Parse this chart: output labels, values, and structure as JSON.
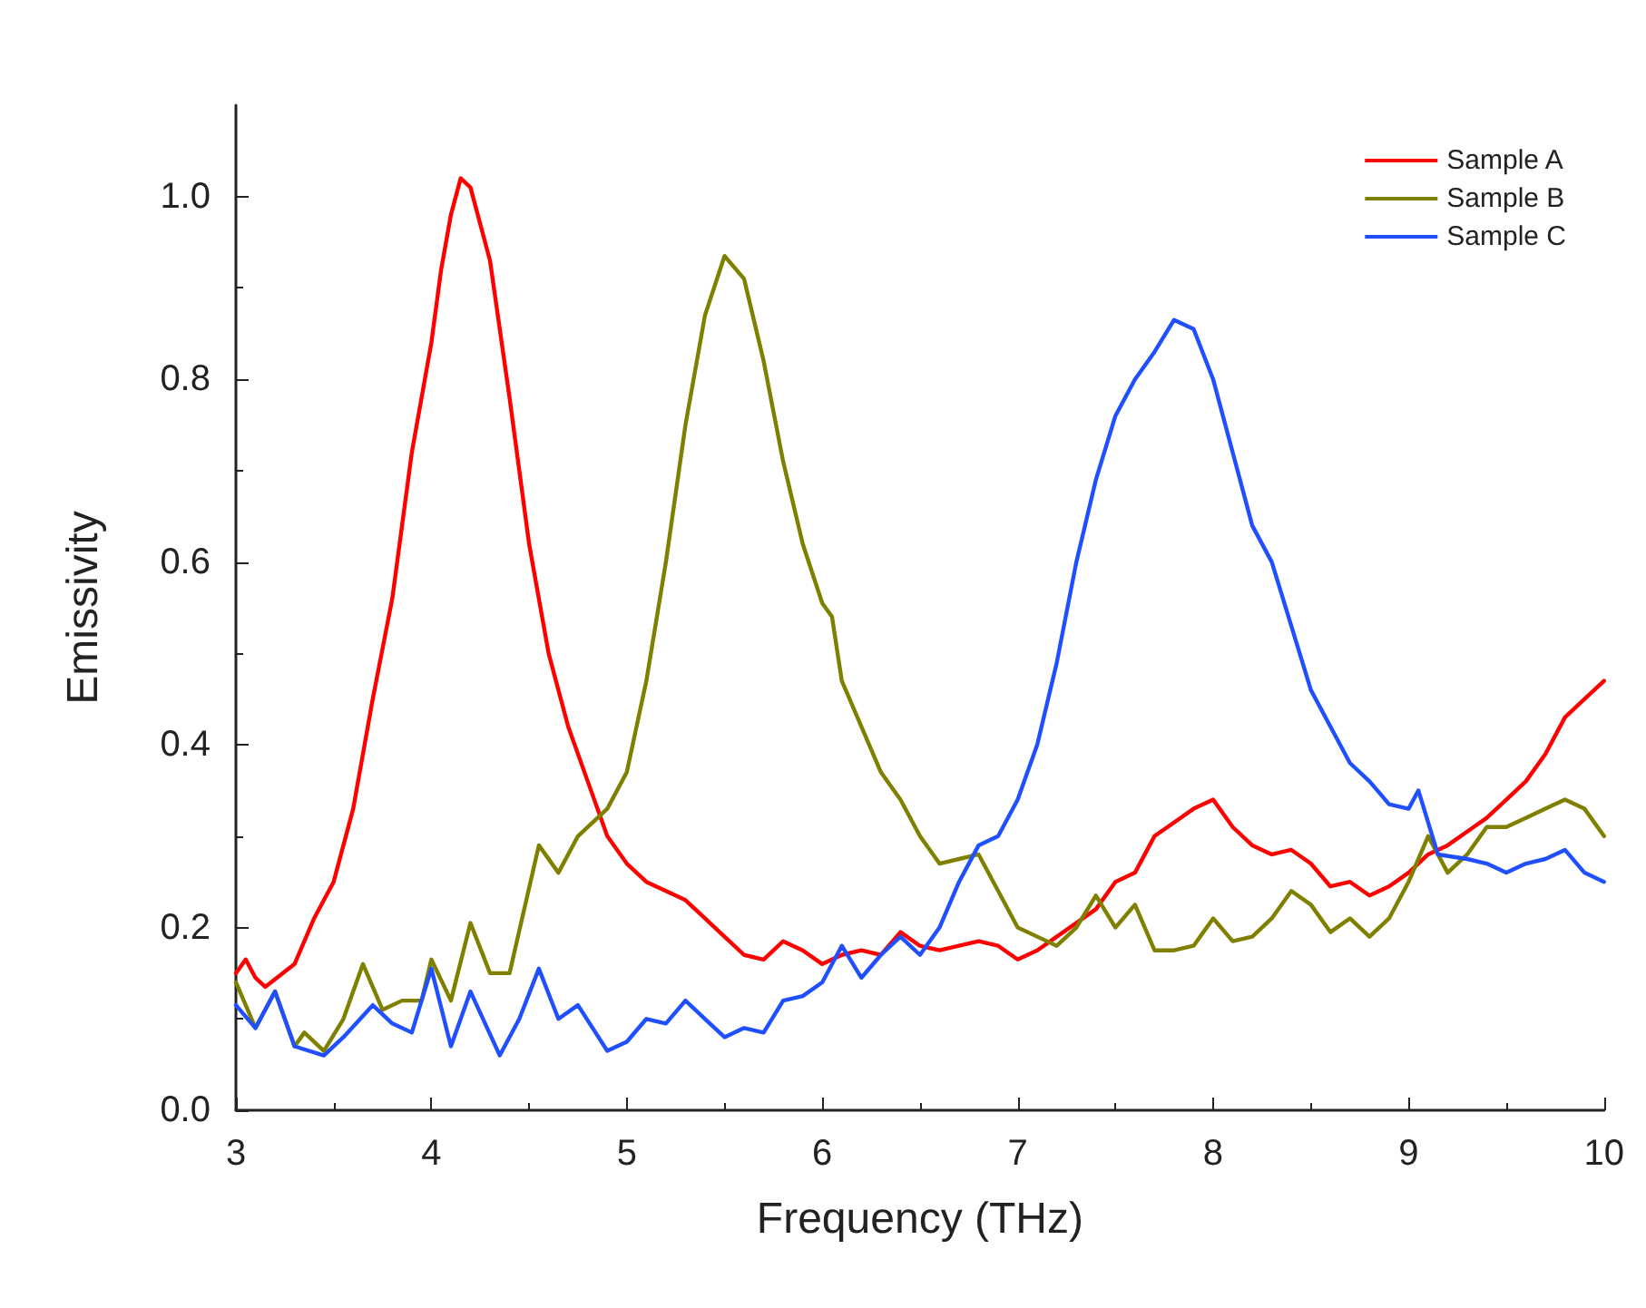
{
  "chart_data": {
    "type": "line",
    "xlabel": "Frequency (THz)",
    "ylabel": "Emissivity",
    "xlim": [
      3,
      10
    ],
    "ylim": [
      0,
      1.1
    ],
    "xticks": [
      3,
      4,
      5,
      6,
      7,
      8,
      9,
      10
    ],
    "yticks": [
      {
        "value": 0,
        "label": "0.0"
      },
      {
        "value": 0.2,
        "label": "0.2"
      },
      {
        "value": 0.4,
        "label": "0.4"
      },
      {
        "value": 0.6,
        "label": "0.6"
      },
      {
        "value": 0.8,
        "label": "0.8"
      },
      {
        "value": 1,
        "label": "1.0"
      }
    ],
    "grid": false,
    "legend": "top right",
    "marker": "none",
    "line_style": "solid",
    "series": [
      {
        "name": "Sample A",
        "color": "#ff0000",
        "x": [
          3.0,
          3.05,
          3.1,
          3.15,
          3.3,
          3.4,
          3.5,
          3.6,
          3.7,
          3.8,
          3.9,
          4.0,
          4.05,
          4.1,
          4.15,
          4.2,
          4.3,
          4.4,
          4.5,
          4.6,
          4.7,
          4.8,
          4.9,
          5.0,
          5.1,
          5.2,
          5.3,
          5.4,
          5.5,
          5.6,
          5.7,
          5.8,
          5.9,
          6.0,
          6.1,
          6.2,
          6.3,
          6.4,
          6.5,
          6.6,
          6.8,
          6.9,
          7.0,
          7.1,
          7.2,
          7.4,
          7.5,
          7.6,
          7.7,
          7.8,
          7.9,
          8.0,
          8.1,
          8.2,
          8.3,
          8.4,
          8.5,
          8.6,
          8.7,
          8.8,
          8.9,
          9.0,
          9.1,
          9.2,
          9.3,
          9.4,
          9.5,
          9.6,
          9.7,
          9.8,
          9.9,
          10.0
        ],
        "values": [
          0.15,
          0.165,
          0.145,
          0.135,
          0.16,
          0.21,
          0.25,
          0.33,
          0.45,
          0.56,
          0.72,
          0.84,
          0.92,
          0.98,
          1.02,
          1.01,
          0.93,
          0.78,
          0.62,
          0.5,
          0.42,
          0.36,
          0.3,
          0.27,
          0.25,
          0.24,
          0.23,
          0.21,
          0.19,
          0.17,
          0.165,
          0.185,
          0.175,
          0.16,
          0.17,
          0.175,
          0.17,
          0.195,
          0.18,
          0.175,
          0.185,
          0.18,
          0.165,
          0.175,
          0.19,
          0.22,
          0.25,
          0.26,
          0.3,
          0.315,
          0.33,
          0.34,
          0.31,
          0.29,
          0.28,
          0.285,
          0.27,
          0.245,
          0.25,
          0.235,
          0.245,
          0.26,
          0.28,
          0.29,
          0.305,
          0.32,
          0.34,
          0.36,
          0.39,
          0.43,
          0.45,
          0.47
        ]
      },
      {
        "name": "Sample B",
        "color": "#808000",
        "x": [
          3.0,
          3.1,
          3.2,
          3.3,
          3.35,
          3.45,
          3.55,
          3.65,
          3.75,
          3.85,
          3.95,
          4.0,
          4.1,
          4.2,
          4.3,
          4.4,
          4.55,
          4.65,
          4.75,
          4.9,
          5.0,
          5.1,
          5.2,
          5.3,
          5.4,
          5.5,
          5.6,
          5.7,
          5.8,
          5.9,
          6.0,
          6.05,
          6.1,
          6.2,
          6.3,
          6.4,
          6.5,
          6.6,
          6.7,
          6.8,
          6.9,
          7.0,
          7.1,
          7.2,
          7.3,
          7.4,
          7.5,
          7.6,
          7.7,
          7.8,
          7.9,
          8.0,
          8.1,
          8.2,
          8.3,
          8.4,
          8.5,
          8.6,
          8.7,
          8.8,
          8.9,
          9.0,
          9.1,
          9.2,
          9.3,
          9.4,
          9.5,
          9.6,
          9.7,
          9.8,
          9.9,
          10.0
        ],
        "values": [
          0.14,
          0.09,
          0.13,
          0.07,
          0.085,
          0.065,
          0.1,
          0.16,
          0.11,
          0.12,
          0.12,
          0.165,
          0.12,
          0.205,
          0.15,
          0.15,
          0.29,
          0.26,
          0.3,
          0.33,
          0.37,
          0.47,
          0.6,
          0.75,
          0.87,
          0.935,
          0.91,
          0.82,
          0.71,
          0.62,
          0.555,
          0.54,
          0.47,
          0.42,
          0.37,
          0.34,
          0.3,
          0.27,
          0.275,
          0.28,
          0.24,
          0.2,
          0.19,
          0.18,
          0.2,
          0.235,
          0.2,
          0.225,
          0.175,
          0.175,
          0.18,
          0.21,
          0.185,
          0.19,
          0.21,
          0.24,
          0.225,
          0.195,
          0.21,
          0.19,
          0.21,
          0.25,
          0.3,
          0.26,
          0.28,
          0.31,
          0.31,
          0.32,
          0.33,
          0.34,
          0.33,
          0.3
        ]
      },
      {
        "name": "Sample C",
        "color": "#1f4fff",
        "x": [
          3.0,
          3.1,
          3.2,
          3.3,
          3.45,
          3.55,
          3.7,
          3.8,
          3.9,
          4.0,
          4.1,
          4.2,
          4.35,
          4.45,
          4.55,
          4.65,
          4.75,
          4.9,
          5.0,
          5.1,
          5.2,
          5.3,
          5.4,
          5.5,
          5.6,
          5.7,
          5.8,
          5.9,
          6.0,
          6.1,
          6.2,
          6.3,
          6.4,
          6.5,
          6.6,
          6.7,
          6.8,
          6.9,
          7.0,
          7.1,
          7.2,
          7.3,
          7.4,
          7.5,
          7.6,
          7.7,
          7.8,
          7.9,
          8.0,
          8.1,
          8.2,
          8.3,
          8.4,
          8.5,
          8.6,
          8.7,
          8.8,
          8.9,
          9.0,
          9.05,
          9.15,
          9.3,
          9.4,
          9.5,
          9.6,
          9.7,
          9.8,
          9.9,
          10.0
        ],
        "values": [
          0.115,
          0.09,
          0.13,
          0.07,
          0.06,
          0.08,
          0.115,
          0.095,
          0.085,
          0.155,
          0.07,
          0.13,
          0.06,
          0.1,
          0.155,
          0.1,
          0.115,
          0.065,
          0.075,
          0.1,
          0.095,
          0.12,
          0.1,
          0.08,
          0.09,
          0.085,
          0.12,
          0.125,
          0.14,
          0.18,
          0.145,
          0.17,
          0.19,
          0.17,
          0.2,
          0.25,
          0.29,
          0.3,
          0.34,
          0.4,
          0.49,
          0.6,
          0.69,
          0.76,
          0.8,
          0.83,
          0.865,
          0.855,
          0.8,
          0.72,
          0.64,
          0.6,
          0.53,
          0.46,
          0.42,
          0.38,
          0.36,
          0.335,
          0.33,
          0.35,
          0.28,
          0.275,
          0.27,
          0.26,
          0.27,
          0.275,
          0.285,
          0.26,
          0.25
        ]
      }
    ]
  }
}
